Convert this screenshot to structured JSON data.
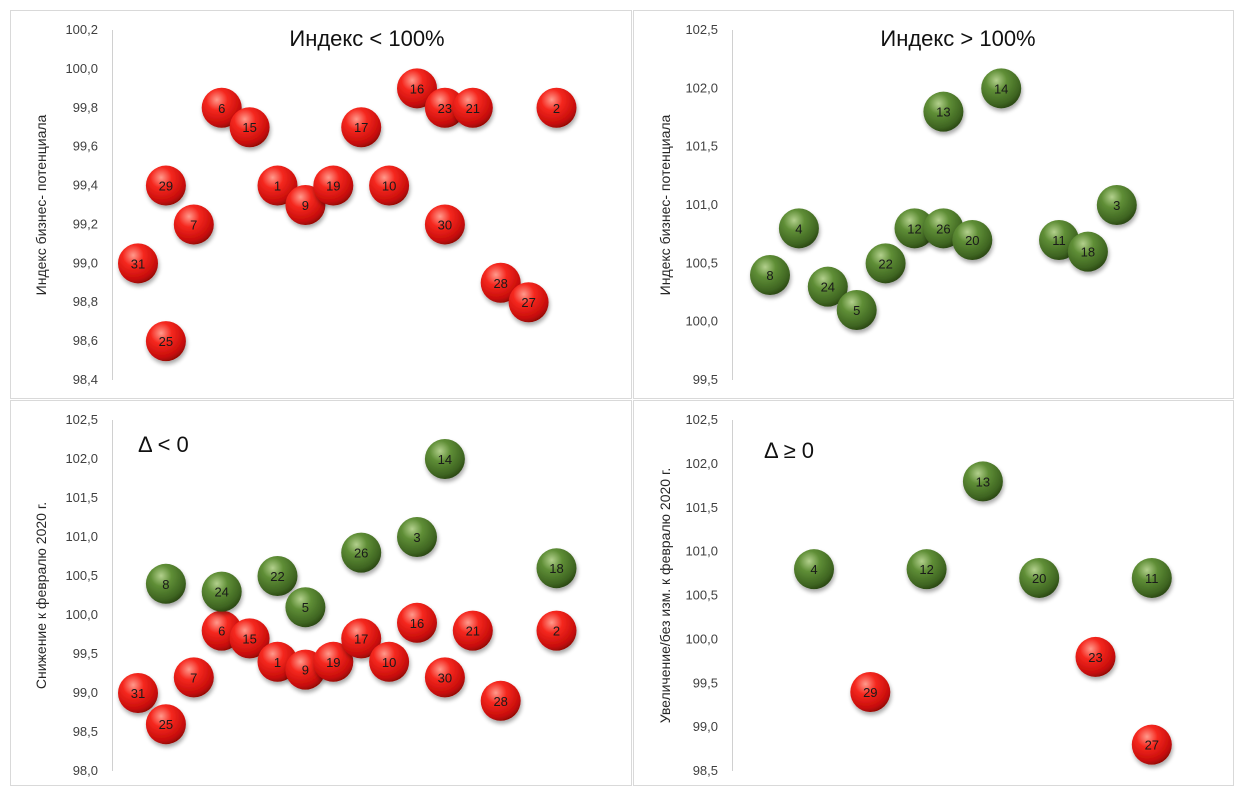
{
  "chart_data": [
    {
      "type": "scatter",
      "title": "Индекс < 100%",
      "ylabel": "Индекс бизнес- потенциала",
      "ylim": [
        98.4,
        100.2
      ],
      "yticks": [
        "98,4",
        "98,6",
        "98,8",
        "99,0",
        "99,2",
        "99,4",
        "99,6",
        "99,8",
        "100,0",
        "100,2"
      ],
      "colors": {
        "red": "#e8201c",
        "green": "#4f7a2c"
      },
      "points": [
        {
          "label": "31",
          "x": 1,
          "y": 99.0,
          "color": "red"
        },
        {
          "label": "25",
          "x": 2,
          "y": 98.6,
          "color": "red"
        },
        {
          "label": "29",
          "x": 2,
          "y": 99.4,
          "color": "red"
        },
        {
          "label": "7",
          "x": 3,
          "y": 99.2,
          "color": "red"
        },
        {
          "label": "6",
          "x": 4,
          "y": 99.8,
          "color": "red"
        },
        {
          "label": "15",
          "x": 5,
          "y": 99.7,
          "color": "red"
        },
        {
          "label": "1",
          "x": 6,
          "y": 99.4,
          "color": "red"
        },
        {
          "label": "9",
          "x": 7,
          "y": 99.3,
          "color": "red"
        },
        {
          "label": "19",
          "x": 8,
          "y": 99.4,
          "color": "red"
        },
        {
          "label": "17",
          "x": 9,
          "y": 99.7,
          "color": "red"
        },
        {
          "label": "10",
          "x": 10,
          "y": 99.4,
          "color": "red"
        },
        {
          "label": "16",
          "x": 11,
          "y": 99.9,
          "color": "red"
        },
        {
          "label": "30",
          "x": 12,
          "y": 99.2,
          "color": "red"
        },
        {
          "label": "23",
          "x": 12,
          "y": 99.8,
          "color": "red"
        },
        {
          "label": "21",
          "x": 13,
          "y": 99.8,
          "color": "red"
        },
        {
          "label": "28",
          "x": 14,
          "y": 98.9,
          "color": "red"
        },
        {
          "label": "27",
          "x": 15,
          "y": 98.8,
          "color": "red"
        },
        {
          "label": "2",
          "x": 16,
          "y": 99.8,
          "color": "red"
        }
      ]
    },
    {
      "type": "scatter",
      "title": "Индекс > 100%",
      "ylabel": "Индекс бизнес- потенциала",
      "ylim": [
        99.5,
        102.5
      ],
      "yticks": [
        "99,5",
        "100,0",
        "100,5",
        "101,0",
        "101,5",
        "102,0",
        "102,5"
      ],
      "colors": {
        "red": "#e8201c",
        "green": "#4f7a2c"
      },
      "points": [
        {
          "label": "8",
          "x": 1,
          "y": 100.4,
          "color": "green"
        },
        {
          "label": "4",
          "x": 2,
          "y": 100.8,
          "color": "green"
        },
        {
          "label": "24",
          "x": 3,
          "y": 100.3,
          "color": "green"
        },
        {
          "label": "5",
          "x": 4,
          "y": 100.1,
          "color": "green"
        },
        {
          "label": "22",
          "x": 5,
          "y": 100.5,
          "color": "green"
        },
        {
          "label": "12",
          "x": 6,
          "y": 100.8,
          "color": "green"
        },
        {
          "label": "13",
          "x": 7,
          "y": 101.8,
          "color": "green"
        },
        {
          "label": "26",
          "x": 7,
          "y": 100.8,
          "color": "green"
        },
        {
          "label": "20",
          "x": 8,
          "y": 100.7,
          "color": "green"
        },
        {
          "label": "14",
          "x": 9,
          "y": 102.0,
          "color": "green"
        },
        {
          "label": "11",
          "x": 11,
          "y": 100.7,
          "color": "green"
        },
        {
          "label": "18",
          "x": 12,
          "y": 100.6,
          "color": "green"
        },
        {
          "label": "3",
          "x": 13,
          "y": 101.0,
          "color": "green"
        }
      ]
    },
    {
      "type": "scatter",
      "title": "Δ < 0",
      "ylabel": "Снижение   к февралю 2020 г.",
      "ylim": [
        98.0,
        102.5
      ],
      "yticks": [
        "98,0",
        "98,5",
        "99,0",
        "99,5",
        "100,0",
        "100,5",
        "101,0",
        "101,5",
        "102,0",
        "102,5"
      ],
      "colors": {
        "red": "#e8201c",
        "green": "#4f7a2c"
      },
      "points": [
        {
          "label": "31",
          "x": 1,
          "y": 99.0,
          "color": "red"
        },
        {
          "label": "25",
          "x": 2,
          "y": 98.6,
          "color": "red"
        },
        {
          "label": "8",
          "x": 2,
          "y": 100.4,
          "color": "green"
        },
        {
          "label": "7",
          "x": 3,
          "y": 99.2,
          "color": "red"
        },
        {
          "label": "6",
          "x": 4,
          "y": 99.8,
          "color": "red"
        },
        {
          "label": "24",
          "x": 4,
          "y": 100.3,
          "color": "green"
        },
        {
          "label": "15",
          "x": 5,
          "y": 99.7,
          "color": "red"
        },
        {
          "label": "1",
          "x": 6,
          "y": 99.4,
          "color": "red"
        },
        {
          "label": "22",
          "x": 6,
          "y": 100.5,
          "color": "green"
        },
        {
          "label": "9",
          "x": 7,
          "y": 99.3,
          "color": "red"
        },
        {
          "label": "5",
          "x": 7,
          "y": 100.1,
          "color": "green"
        },
        {
          "label": "19",
          "x": 8,
          "y": 99.4,
          "color": "red"
        },
        {
          "label": "17",
          "x": 9,
          "y": 99.7,
          "color": "red"
        },
        {
          "label": "26",
          "x": 9,
          "y": 100.8,
          "color": "green"
        },
        {
          "label": "10",
          "x": 10,
          "y": 99.4,
          "color": "red"
        },
        {
          "label": "16",
          "x": 11,
          "y": 99.9,
          "color": "red"
        },
        {
          "label": "3",
          "x": 11,
          "y": 101.0,
          "color": "green"
        },
        {
          "label": "30",
          "x": 12,
          "y": 99.2,
          "color": "red"
        },
        {
          "label": "14",
          "x": 12,
          "y": 102.0,
          "color": "green"
        },
        {
          "label": "21",
          "x": 13,
          "y": 99.8,
          "color": "red"
        },
        {
          "label": "28",
          "x": 14,
          "y": 98.9,
          "color": "red"
        },
        {
          "label": "2",
          "x": 16,
          "y": 99.8,
          "color": "red"
        },
        {
          "label": "18",
          "x": 16,
          "y": 100.6,
          "color": "green"
        }
      ]
    },
    {
      "type": "scatter",
      "title": "Δ ≥ 0",
      "ylabel": "Увеличение/без изм.  к февралю 2020 г.",
      "ylim": [
        98.5,
        102.5
      ],
      "yticks": [
        "98,5",
        "99,0",
        "99,5",
        "100,0",
        "100,5",
        "101,0",
        "101,5",
        "102,0",
        "102,5"
      ],
      "colors": {
        "red": "#e8201c",
        "green": "#4f7a2c"
      },
      "points": [
        {
          "label": "4",
          "x": 1,
          "y": 100.8,
          "color": "green"
        },
        {
          "label": "29",
          "x": 2,
          "y": 99.4,
          "color": "red"
        },
        {
          "label": "12",
          "x": 3,
          "y": 100.8,
          "color": "green"
        },
        {
          "label": "13",
          "x": 4,
          "y": 101.8,
          "color": "green"
        },
        {
          "label": "20",
          "x": 5,
          "y": 100.7,
          "color": "green"
        },
        {
          "label": "23",
          "x": 6,
          "y": 99.8,
          "color": "red"
        },
        {
          "label": "11",
          "x": 7,
          "y": 100.7,
          "color": "green"
        },
        {
          "label": "27",
          "x": 7,
          "y": 98.8,
          "color": "red"
        }
      ]
    }
  ]
}
